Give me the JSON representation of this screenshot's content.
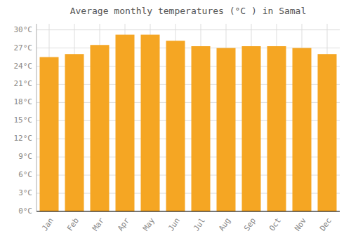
{
  "chart_data": {
    "type": "bar",
    "title": "Average monthly temperatures (°C ) in Samal",
    "categories": [
      "Jan",
      "Feb",
      "Mar",
      "Apr",
      "May",
      "Jun",
      "Jul",
      "Aug",
      "Sep",
      "Oct",
      "Nov",
      "Dec"
    ],
    "values": [
      25.5,
      26.0,
      27.5,
      29.2,
      29.2,
      28.2,
      27.3,
      27.0,
      27.3,
      27.3,
      27.0,
      26.0
    ],
    "color": "#F5A623",
    "ylim": [
      0,
      31
    ],
    "yticks": [
      {
        "value": 0,
        "label": "0°C"
      },
      {
        "value": 3,
        "label": "3°C"
      },
      {
        "value": 6,
        "label": "6°C"
      },
      {
        "value": 9,
        "label": "9°C"
      },
      {
        "value": 12,
        "label": "12°C"
      },
      {
        "value": 15,
        "label": "15°C"
      },
      {
        "value": 18,
        "label": "18°C"
      },
      {
        "value": 21,
        "label": "21°C"
      },
      {
        "value": 24,
        "label": "24°C"
      },
      {
        "value": 27,
        "label": "27°C"
      },
      {
        "value": 30,
        "label": "30°C"
      }
    ],
    "grid": true
  }
}
